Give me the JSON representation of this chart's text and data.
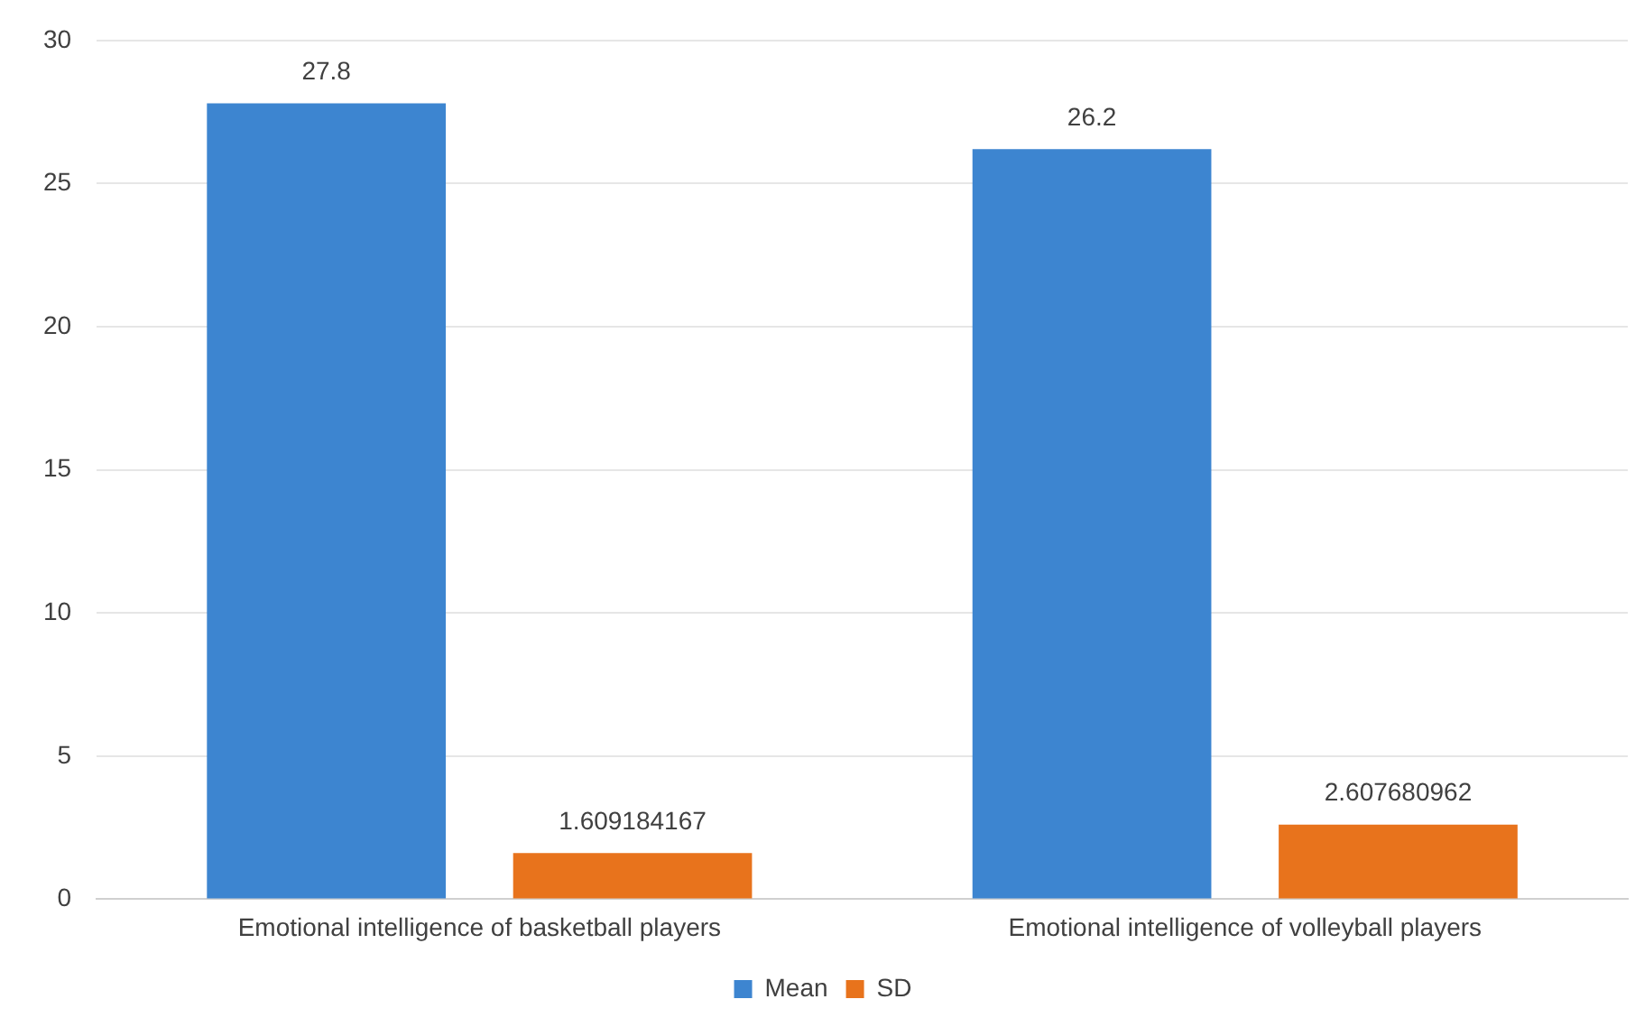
{
  "chart_data": {
    "type": "bar",
    "categories": [
      "Emotional intelligence of basketball players",
      "Emotional intelligence of volleyball players"
    ],
    "series": [
      {
        "name": "Mean",
        "color": "#3d85d0",
        "values": [
          27.8,
          26.2
        ]
      },
      {
        "name": "SD",
        "color": "#e8731c",
        "values": [
          1.609184167,
          2.607680962
        ]
      }
    ],
    "ylim": [
      0,
      30
    ],
    "yticks": [
      0,
      5,
      10,
      15,
      20,
      25,
      30
    ],
    "grid": "y",
    "legend": "bottom",
    "data_labels": true
  }
}
